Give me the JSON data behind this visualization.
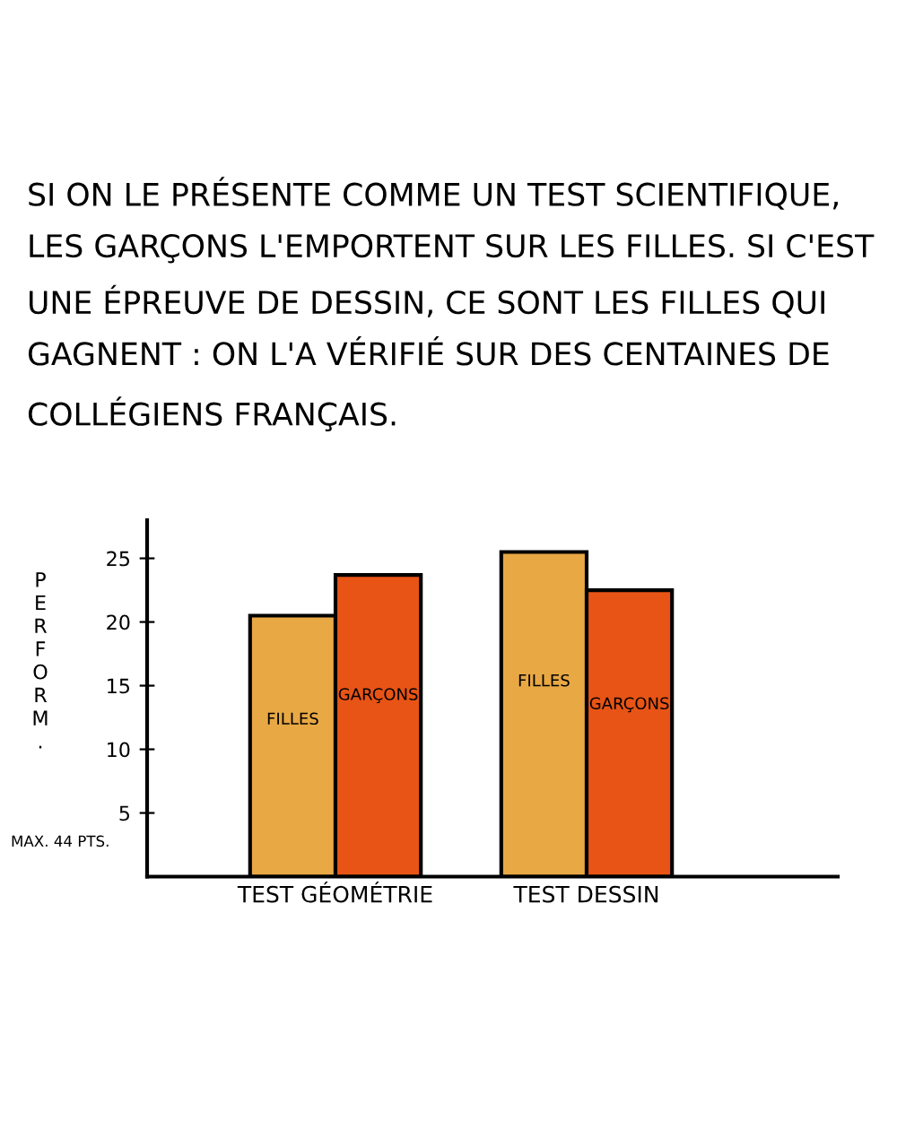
{
  "chart_data": {
    "type": "bar",
    "title": "SI ON LE PRÉSENTE COMME UN TEST SCIENTIFIQUE, LES GARÇONS L'EMPORTENT SUR LES FILLES. SI C'EST UNE ÉPREUVE DE DESSIN, CE SONT LES FILLES QUI GAGNENT : ON L'A VÉRIFIÉ SUR DES CENTAINES DE COLLÉGIENS FRANÇAIS.",
    "ylabel": "PERFORM.",
    "annotations": [
      "MAX. 44 PTS."
    ],
    "categories": [
      "TEST GÉOMÉTRIE",
      "TEST DESSIN"
    ],
    "series": [
      {
        "name": "FILLES",
        "color": "#e8a844",
        "values": [
          20.5,
          25.5
        ]
      },
      {
        "name": "GARÇONS",
        "color": "#e85416",
        "values": [
          23.7,
          22.5
        ]
      }
    ],
    "ylim": [
      0,
      28
    ],
    "yticks": [
      5,
      10,
      15,
      20,
      25
    ],
    "grid": false,
    "legend": false
  }
}
